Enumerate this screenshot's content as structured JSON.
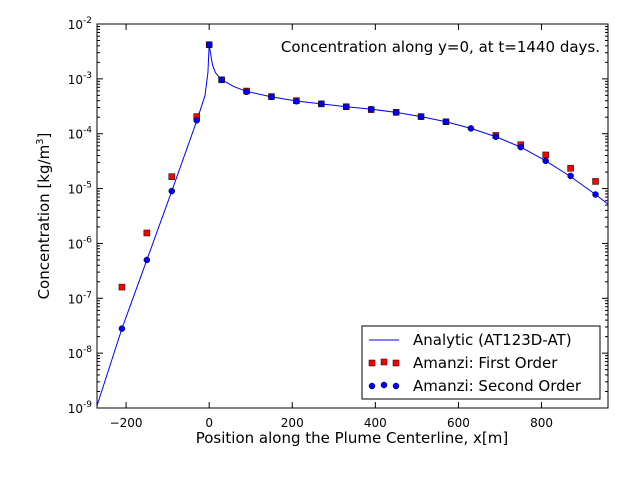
{
  "chart_data": {
    "type": "scatter",
    "title": "",
    "annotation": "Concentration along y=0, at t=1440 days.",
    "xlabel": "Position along the Plume Centerline, x[m]",
    "ylabel_main": "Concentration [kg/m",
    "ylabel_sup": "3",
    "ylabel_end": "]",
    "xlim": [
      -270,
      960
    ],
    "ylim": [
      1e-09,
      0.01
    ],
    "yscale": "log",
    "grid": false,
    "legend_position": "lower-right",
    "x_ticks": [
      {
        "value": -200,
        "label": "−200"
      },
      {
        "value": 0,
        "label": "0"
      },
      {
        "value": 200,
        "label": "200"
      },
      {
        "value": 400,
        "label": "400"
      },
      {
        "value": 600,
        "label": "600"
      },
      {
        "value": 800,
        "label": "800"
      }
    ],
    "y_ticks": [
      {
        "exp": -9,
        "base": "10",
        "sup": "-9"
      },
      {
        "exp": -8,
        "base": "10",
        "sup": "-8"
      },
      {
        "exp": -7,
        "base": "10",
        "sup": "-7"
      },
      {
        "exp": -6,
        "base": "10",
        "sup": "-6"
      },
      {
        "exp": -5,
        "base": "10",
        "sup": "-5"
      },
      {
        "exp": -4,
        "base": "10",
        "sup": "-4"
      },
      {
        "exp": -3,
        "base": "10",
        "sup": "-3"
      },
      {
        "exp": -2,
        "base": "10",
        "sup": "-2"
      }
    ],
    "series": [
      {
        "name": "Analytic (AT123D-AT)",
        "kind": "line",
        "color": "#0000ff",
        "x": [
          -270,
          -210,
          -150,
          -90,
          -30,
          -10,
          -3,
          0,
          3,
          8,
          15,
          25,
          35,
          60,
          90,
          150,
          210,
          270,
          330,
          390,
          450,
          510,
          570,
          630,
          690,
          750,
          810,
          870,
          930,
          960
        ],
        "y": [
          1.1e-09,
          2.8e-08,
          5e-07,
          9e-06,
          0.00017,
          0.0005,
          0.0013,
          0.0042,
          0.003,
          0.0018,
          0.0013,
          0.00105,
          0.00092,
          0.00072,
          0.00059,
          0.00047,
          0.000395,
          0.00035,
          0.00031,
          0.00028,
          0.000245,
          0.000205,
          0.000165,
          0.000125,
          8.8e-05,
          5.7e-05,
          3.2e-05,
          1.65e-05,
          7.8e-06,
          5.2e-06
        ]
      },
      {
        "name": "Amanzi: First Order",
        "kind": "square",
        "color": "#ff0000",
        "x": [
          -210,
          -150,
          -90,
          -30,
          0,
          30,
          90,
          150,
          210,
          270,
          330,
          390,
          450,
          510,
          570,
          690,
          750,
          810,
          870,
          930
        ],
        "y": [
          1.6e-07,
          1.55e-06,
          1.65e-05,
          0.000205,
          0.0042,
          0.00096,
          0.0006,
          0.000475,
          0.0004,
          0.00035,
          0.00031,
          0.000275,
          0.000245,
          0.000205,
          0.000165,
          9.3e-05,
          6.3e-05,
          4.1e-05,
          2.35e-05,
          1.35e-05
        ]
      },
      {
        "name": "Amanzi: Second Order",
        "kind": "circle",
        "color": "#0000ff",
        "x": [
          -210,
          -150,
          -90,
          -30,
          0,
          30,
          90,
          150,
          210,
          270,
          330,
          390,
          450,
          510,
          570,
          630,
          690,
          750,
          810,
          870,
          930
        ],
        "y": [
          2.8e-08,
          5e-07,
          9e-06,
          0.000175,
          0.0042,
          0.00096,
          0.00058,
          0.00047,
          0.00039,
          0.00035,
          0.00031,
          0.00028,
          0.000245,
          0.000205,
          0.000165,
          0.000125,
          8.8e-05,
          5.7e-05,
          3.2e-05,
          1.7e-05,
          7.8e-06
        ]
      }
    ]
  }
}
